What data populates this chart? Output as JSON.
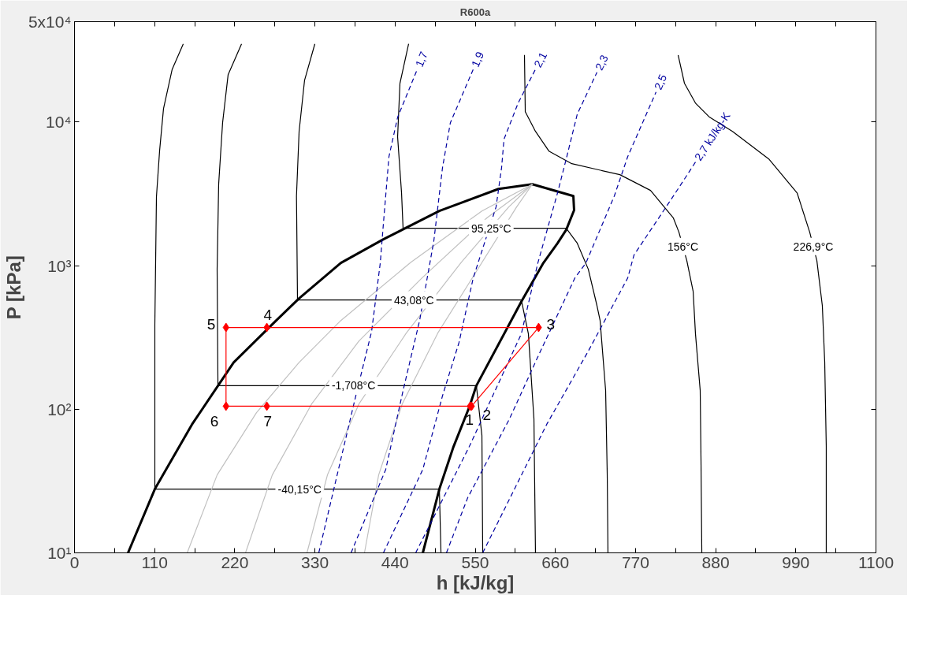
{
  "chart_data": {
    "type": "line",
    "title": "R600a",
    "xlabel": "h [kJ/kg]",
    "ylabel": "P [kPa]",
    "log": "y",
    "xlim": [
      0,
      1100
    ],
    "ylim": [
      10,
      50000
    ],
    "xticks": [
      0,
      {
        "value": 55,
        "label": null
      },
      110,
      {
        "value": 165,
        "label": null
      },
      220,
      {
        "value": 275,
        "label": null
      },
      330,
      {
        "value": 385,
        "label": null
      },
      440,
      {
        "value": 495,
        "label": null
      },
      550,
      {
        "value": 605,
        "label": null
      },
      660,
      {
        "value": 715,
        "label": null
      },
      770,
      {
        "value": 825,
        "label": null
      },
      880,
      {
        "value": 935,
        "label": null
      },
      990,
      {
        "value": 1045,
        "label": null
      },
      1100
    ],
    "yticks": [
      {
        "value": 10,
        "label": "10¹"
      },
      {
        "value": 100,
        "label": "10²"
      },
      {
        "value": 1000,
        "label": "10³"
      },
      {
        "value": 10000,
        "label": "10⁴"
      },
      {
        "value": 50000,
        "label": "5x10⁴"
      }
    ],
    "series": [
      {
        "color": "#000000",
        "x": [
          73.5,
          110.3,
          161.2,
          218.5,
          276.9,
          308.3,
          365.6,
          424.0,
          500.8,
          581.9,
          628.4,
          684.7,
          685.7,
          674.9,
          663.0,
          643.6,
          613.3,
          551.6,
          541.9,
          520.3,
          500.8,
          478.1
        ],
        "values": [
          10,
          27.8,
          78.3,
          212,
          415,
          592,
          1045,
          1525,
          2404,
          3420,
          3690,
          3055,
          2432,
          1775,
          1432,
          1045,
          562,
          146,
          103.5,
          55,
          27.8,
          10
        ]
      },
      {
        "color": "#000000",
        "x": [
          149.3,
          134.1,
          122.2,
          116.8,
          112.5,
          110.3,
          110.3,
          500.8,
          503.0
        ],
        "values": [
          35000,
          23300,
          12400,
          6280,
          3015,
          385,
          27.8,
          27.8,
          10
        ]
      },
      {
        "color": "#000000",
        "x": [
          229.3,
          210.9,
          203.3,
          197.9,
          195.8,
          196.9,
          551.6,
          559.2,
          560.3
        ],
        "values": [
          35000,
          21400,
          9890,
          3690,
          944,
          146,
          146,
          65.6,
          10
        ]
      },
      {
        "color": "#000000",
        "x": [
          329.9,
          315.8,
          308.3,
          304.7,
          306.1,
          613.3,
          623.0,
          630.6,
          632.7
        ],
        "values": [
          35000,
          19550,
          8610,
          3055,
          577,
          577,
          335,
          85.6,
          10
        ]
      },
      {
        "color": "#000000",
        "x": [
          458.6,
          446.7,
          443.5,
          448.9,
          451.0,
          674.9,
          690.1,
          705.2,
          717.1,
          721.4,
          729.0,
          731.2,
          732.2
        ],
        "values": [
          35000,
          18600,
          7870,
          3210,
          1820,
          1820,
          1432,
          944,
          527,
          415,
          135,
          34.9,
          10
        ]
      },
      {
        "color": "#000000",
        "x": [
          617.6,
          618.7,
          632.7,
          651.1,
          682.5,
          748.5,
          790.6,
          822.0,
          829.6,
          840.4,
          849.1,
          852.3,
          858.8,
          859.9,
          861.0
        ],
        "values": [
          29300,
          11800,
          8610,
          6280,
          5130,
          4300,
          3340,
          2145,
          1710,
          1084,
          662,
          335,
          135,
          43.8,
          10
        ]
      },
      {
        "color": "#000000",
        "x": [
          828.5,
          837.2,
          852.3,
          871.8,
          903.1,
          952.9,
          991.8,
          1009.1,
          1018.9,
          1026.4,
          1029.7,
          1031.8,
          1031.8
        ],
        "values": [
          29300,
          18600,
          13550,
          10790,
          8610,
          5530,
          3210,
          1710,
          1084,
          527,
          212,
          55,
          10
        ]
      },
      {
        "color": "#c0c0c0",
        "x": [
          154.7,
          195.8,
          249.8,
          308.3,
          365.6,
          461.8,
          559.2,
          628.4
        ],
        "values": [
          10,
          34.9,
          94.7,
          212,
          415,
          1057,
          2404,
          3690
        ]
      },
      {
        "color": "#c0c0c0",
        "x": [
          234.7,
          271.5,
          325.6,
          390.5,
          477.0,
          566.0,
          628.4
        ],
        "values": [
          10,
          34.9,
          109,
          299,
          821,
          2150,
          3690
        ]
      },
      {
        "color": "#c0c0c0",
        "x": [
          319.1,
          347.2,
          390.5,
          455.4,
          531.1,
          596.0,
          628.4
        ],
        "values": [
          10,
          34.9,
          109,
          339,
          1057,
          2560,
          3690
        ]
      },
      {
        "color": "#c0c0c0",
        "x": [
          398.0,
          417.5,
          449.9,
          498.6,
          552.7,
          606.8,
          628.4
        ],
        "values": [
          10,
          34.9,
          109,
          339,
          931,
          2560,
          3690
        ]
      },
      {
        "name": "1,7",
        "color": "#0000a0",
        "line_style": "dashed",
        "x": [
          335.3,
          362.3,
          385.0,
          407.8,
          419.7,
          424.0,
          431.6,
          443.5,
          470.5
        ],
        "values": [
          10,
          38.1,
          117.5,
          348,
          1045,
          1963,
          5740,
          10790,
          23300
        ]
      },
      {
        "name": "1,9",
        "color": "#0000a0",
        "line_style": "dashed",
        "x": [
          379.6,
          427.2,
          451.0,
          473.7,
          493.2,
          505.1,
          515.9,
          547.3
        ],
        "values": [
          10,
          38.1,
          135,
          415,
          1486,
          4810,
          9890,
          23300
        ]
      },
      {
        "name": "2,1",
        "color": "#0000a0",
        "line_style": "dashed",
        "x": [
          424.0,
          478.1,
          505.1,
          527.8,
          547.3,
          578.6,
          586.2,
          589.5,
          608.9,
          632.7
        ],
        "values": [
          10,
          38.1,
          124,
          292,
          821,
          2560,
          4810,
          7590,
          13550,
          23300
        ]
      },
      {
        "name": "2,3",
        "color": "#0000a0",
        "line_style": "dashed",
        "x": [
          468.3,
          541.9,
          613.3,
          636.0,
          663.0,
          674.9,
          690.1,
          717.1
        ],
        "values": [
          10,
          55,
          335,
          1045,
          3210,
          5530,
          11360,
          22200
        ]
      },
      {
        "name": "2,5",
        "color": "#0000a0",
        "line_style": "dashed",
        "x": [
          510.5,
          539.7,
          597.0,
          636.0,
          686.8,
          702.0,
          740.9,
          759.3,
          798.2
        ],
        "values": [
          10,
          24.2,
          85.6,
          232,
          821,
          1045,
          3055,
          5740,
          16200
        ]
      },
      {
        "name": "2,7 kJ/kg-K",
        "color": "#0000a0",
        "line_style": "dashed",
        "x": [
          560.3,
          648.0,
          705.2,
          759.3,
          767.9,
          822.0,
          852.3
        ],
        "values": [
          10,
          78.3,
          254,
          821,
          1185,
          3055,
          5260
        ]
      },
      {
        "color": "#ff0000",
        "marker": "diamond",
        "x": [
          545,
          637,
          264,
          208,
          208,
          264,
          543
        ],
        "values": [
          105,
          371,
          371,
          371,
          105,
          105,
          105
        ]
      }
    ],
    "annotations": [
      {
        "text": "95,25°C",
        "x": 572,
        "y": 1820
      },
      {
        "text": "43,08°C",
        "x": 466,
        "y": 577
      },
      {
        "text": "-1,708°C",
        "x": 383,
        "y": 146
      },
      {
        "text": "-40,15°C",
        "x": 309,
        "y": 27.8
      },
      {
        "text": "156°C",
        "x": 835,
        "y": 1360
      },
      {
        "text": "226,9°C",
        "x": 1014,
        "y": 1360
      },
      {
        "text": "1",
        "x": 543,
        "y": 105
      },
      {
        "text": "2",
        "x": 545,
        "y": 105
      },
      {
        "text": "3",
        "x": 637,
        "y": 371
      },
      {
        "text": "4",
        "x": 264,
        "y": 371
      },
      {
        "text": "5",
        "x": 208,
        "y": 371
      },
      {
        "text": "6",
        "x": 208,
        "y": 105
      },
      {
        "text": "7",
        "x": 264,
        "y": 105
      }
    ]
  }
}
